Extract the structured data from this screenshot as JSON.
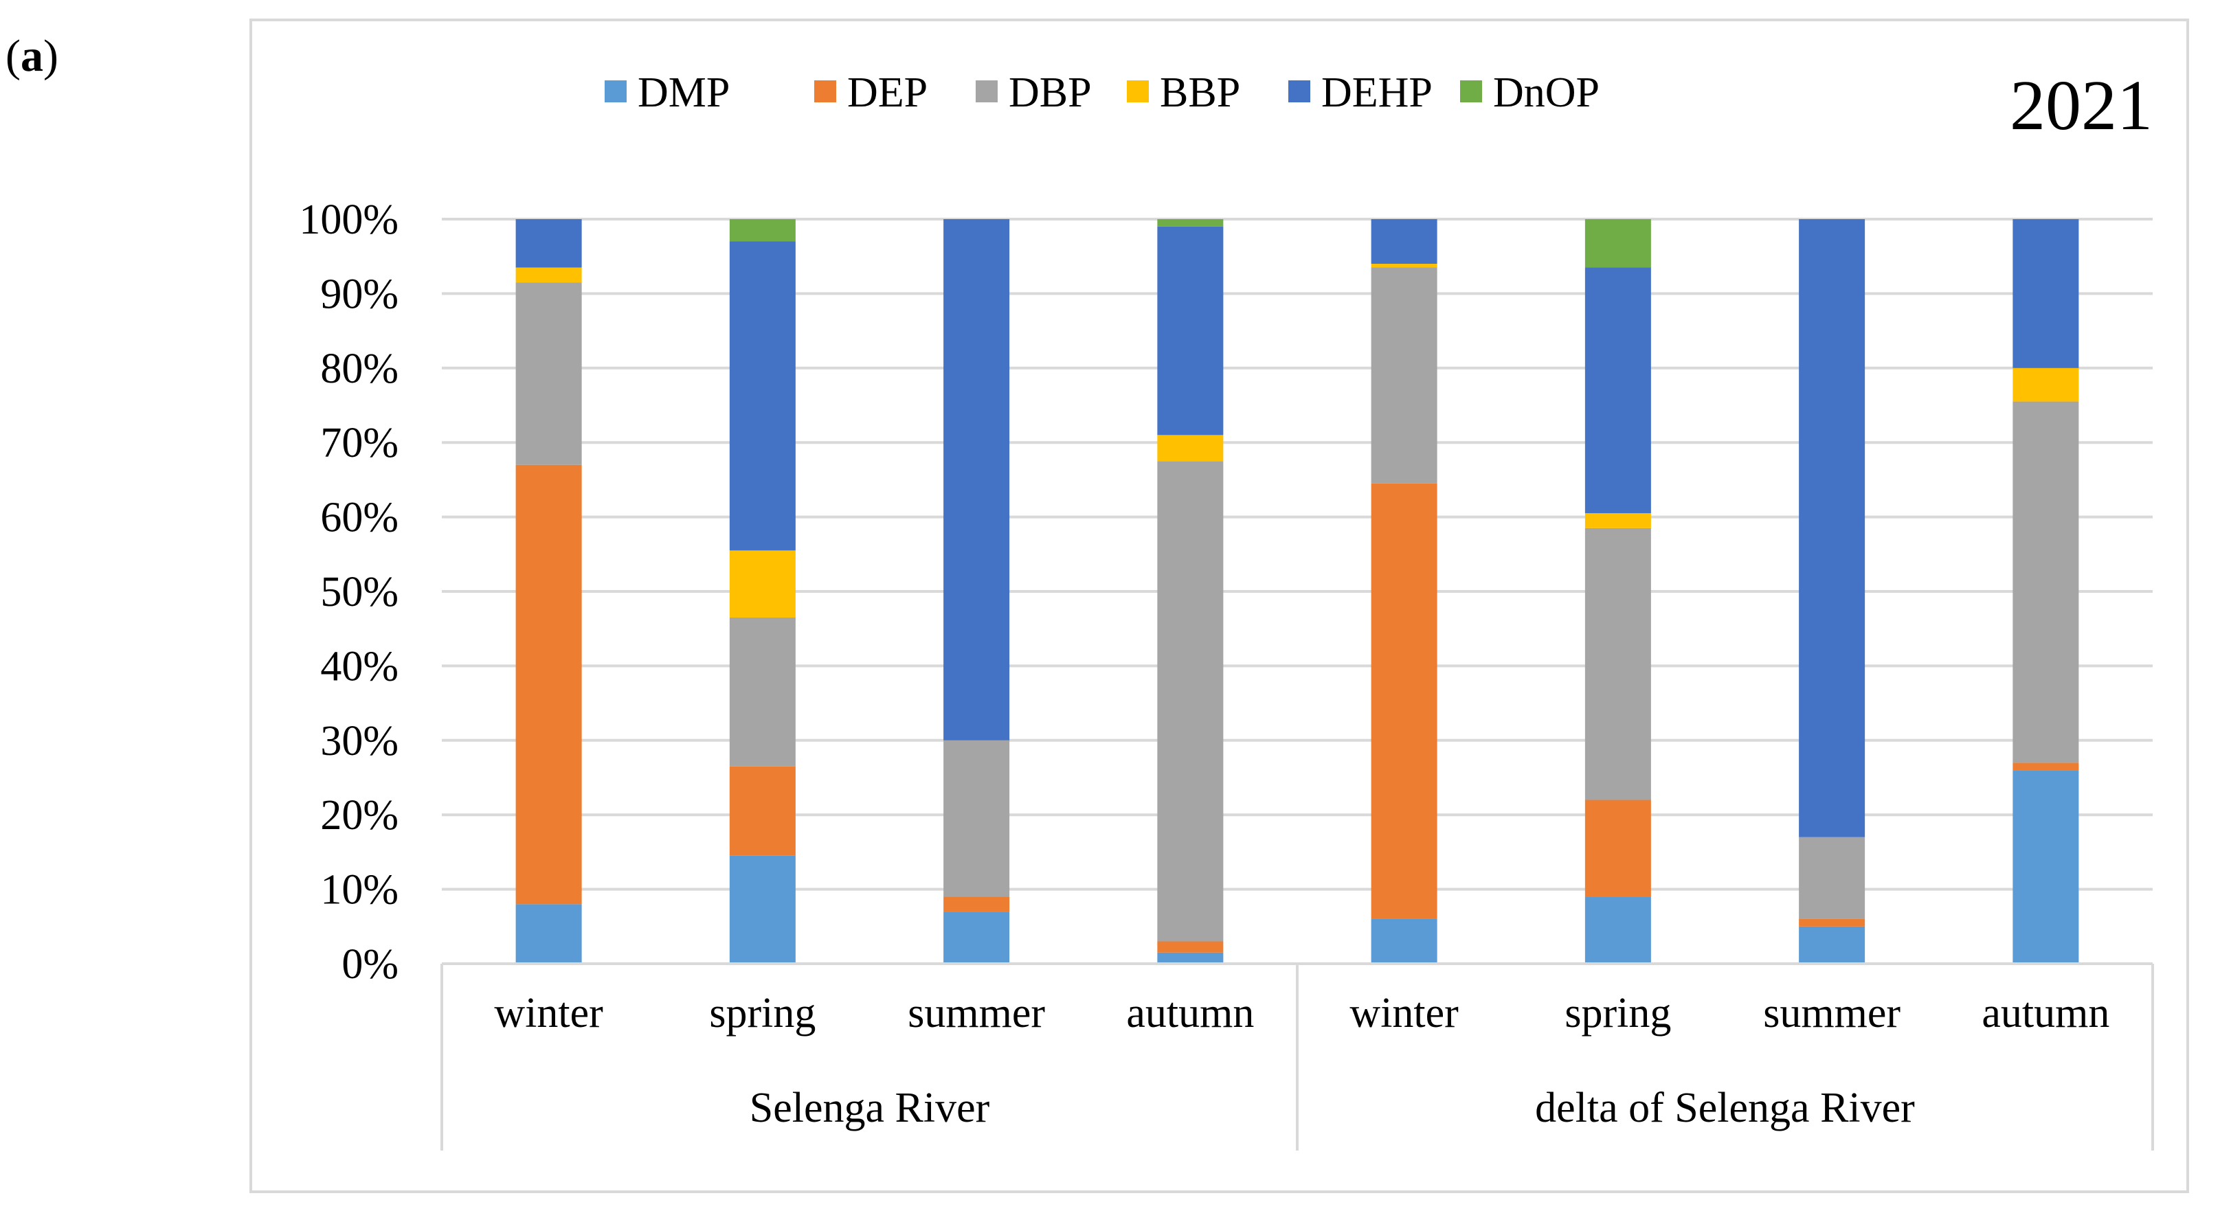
{
  "panel_label": {
    "open": "(",
    "letter": "a",
    "close": ")"
  },
  "chart_data": {
    "type": "bar",
    "stacked": true,
    "normalized_percent": true,
    "title": "2021",
    "ylim": [
      0,
      100
    ],
    "y_ticks": [
      "0%",
      "10%",
      "20%",
      "30%",
      "40%",
      "50%",
      "60%",
      "70%",
      "80%",
      "90%",
      "100%"
    ],
    "groups": [
      {
        "label": "Selenga River",
        "categories": [
          "winter",
          "spring",
          "summer",
          "autumn"
        ]
      },
      {
        "label": "delta of Selenga River",
        "categories": [
          "winter",
          "spring",
          "summer",
          "autumn"
        ]
      }
    ],
    "legend_position": "top",
    "series": [
      {
        "name": "DMP",
        "color": "#5b9bd5",
        "values": [
          8.0,
          14.5,
          7.0,
          1.5,
          6.0,
          9.0,
          5.0,
          26.0
        ]
      },
      {
        "name": "DEP",
        "color": "#ed7d31",
        "values": [
          59.0,
          12.0,
          2.0,
          1.5,
          58.5,
          13.0,
          1.0,
          1.0
        ]
      },
      {
        "name": "DBP",
        "color": "#a5a5a5",
        "values": [
          24.5,
          20.0,
          21.0,
          64.5,
          29.0,
          36.5,
          11.0,
          48.5
        ]
      },
      {
        "name": "BBP",
        "color": "#ffc000",
        "values": [
          2.0,
          9.0,
          0.0,
          3.5,
          0.5,
          2.0,
          0.0,
          4.5
        ]
      },
      {
        "name": "DEHP",
        "color": "#4472c4",
        "values": [
          6.5,
          41.5,
          70.0,
          28.0,
          6.0,
          33.0,
          83.0,
          20.0
        ]
      },
      {
        "name": "DnOP",
        "color": "#70ad47",
        "values": [
          0.0,
          3.0,
          0.0,
          1.0,
          0.0,
          6.5,
          0.0,
          0.0
        ]
      }
    ]
  }
}
